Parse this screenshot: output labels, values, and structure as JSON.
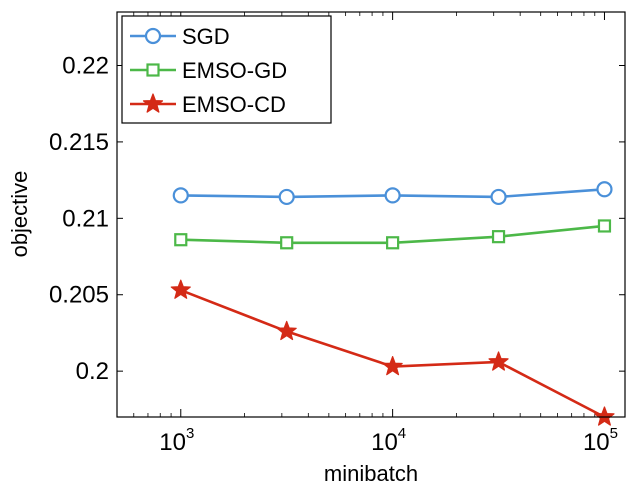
{
  "chart_data": {
    "type": "line",
    "title": "",
    "xlabel": "minibatch",
    "ylabel": "objective",
    "xscale": "log",
    "x": [
      1000,
      3162,
      10000,
      31623,
      100000
    ],
    "xlim": [
      500,
      125000
    ],
    "ylim": [
      0.197,
      0.2235
    ],
    "xticks": [
      {
        "value": 1000,
        "base": "10",
        "exp": "3"
      },
      {
        "value": 10000,
        "base": "10",
        "exp": "4"
      },
      {
        "value": 100000,
        "base": "10",
        "exp": "5"
      }
    ],
    "yticks": [
      {
        "value": 0.2,
        "label": "0.2"
      },
      {
        "value": 0.205,
        "label": "0.205"
      },
      {
        "value": 0.21,
        "label": "0.21"
      },
      {
        "value": 0.215,
        "label": "0.215"
      },
      {
        "value": 0.22,
        "label": "0.22"
      }
    ],
    "grid": false,
    "legend_position": "top-left",
    "series": [
      {
        "name": "SGD",
        "marker": "circle",
        "color": "#4a90d9",
        "values": [
          0.2115,
          0.2114,
          0.2115,
          0.2114,
          0.2119
        ]
      },
      {
        "name": "EMSO-GD",
        "marker": "square",
        "color": "#4cb848",
        "values": [
          0.2086,
          0.2084,
          0.2084,
          0.2088,
          0.2095
        ]
      },
      {
        "name": "EMSO-CD",
        "marker": "star",
        "color": "#d42a16",
        "values": [
          0.2053,
          0.2026,
          0.2003,
          0.2006,
          0.197
        ]
      }
    ]
  }
}
